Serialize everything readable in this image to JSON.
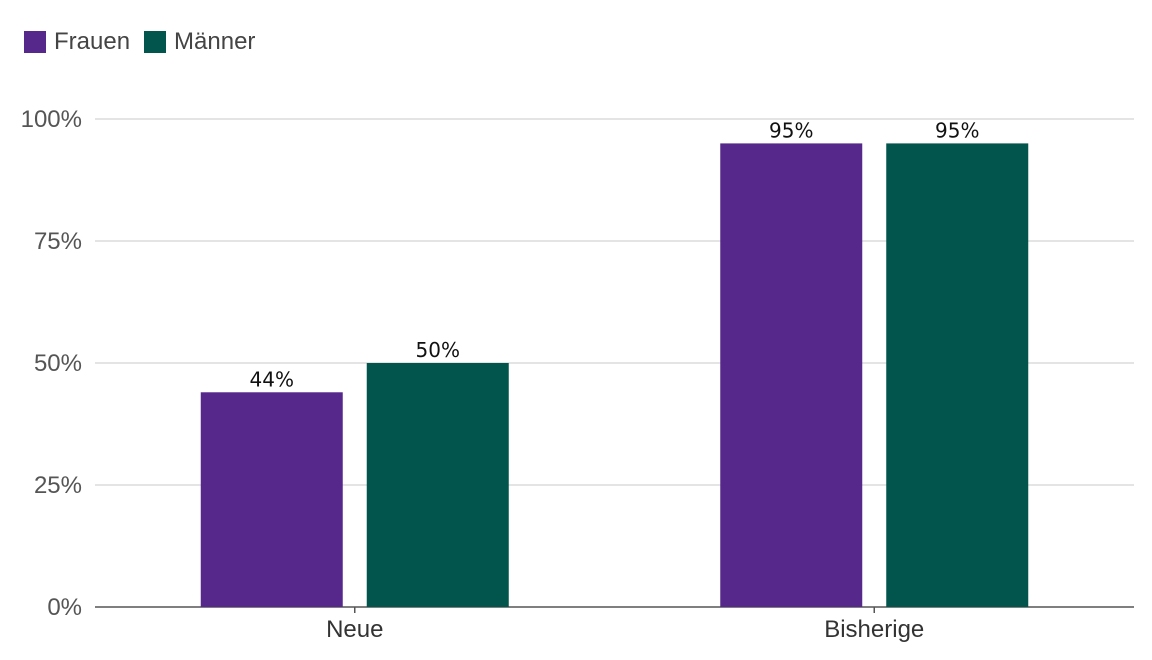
{
  "chart_data": {
    "type": "bar",
    "categories": [
      "Neue",
      "Bisherige"
    ],
    "series": [
      {
        "name": "Frauen",
        "values": [
          44,
          95
        ],
        "color": "#56288c",
        "labels": [
          "44%",
          "95%"
        ]
      },
      {
        "name": "Männer",
        "values": [
          50,
          95
        ],
        "color": "#01554c",
        "labels": [
          "50%",
          "95%"
        ]
      }
    ],
    "ylim": [
      0,
      100
    ],
    "yticks": [
      0,
      25,
      50,
      75,
      100
    ],
    "ytick_labels": [
      "0%",
      "25%",
      "50%",
      "75%",
      "100%"
    ],
    "grid": true,
    "legend_position": "top-left",
    "title": "",
    "xlabel": "",
    "ylabel": ""
  }
}
